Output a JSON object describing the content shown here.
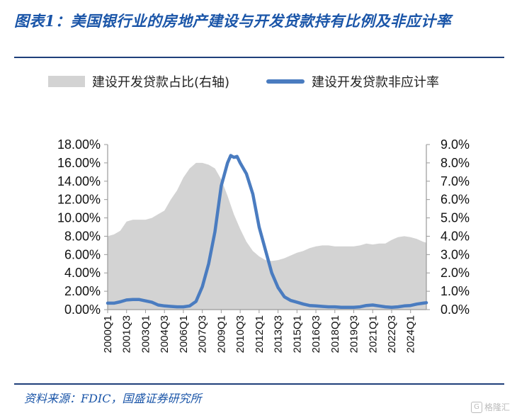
{
  "header": {
    "title": "图表1：美国银行业的房地产建设与开发贷款持有比例及非应计率"
  },
  "source": "资料来源：FDIC，国盛证券研究所",
  "watermark": "格隆汇",
  "colors": {
    "area": "#d3d3d3",
    "line": "#4a7cc0",
    "title": "#1a55a8",
    "rule": "#1f3f7a"
  },
  "chart_data": {
    "type": "area+line",
    "title": "",
    "legend": [
      "建设开发贷款占比(右轴)",
      "建设开发贷款非应计率"
    ],
    "legend_position": "top",
    "grid": false,
    "x_start": "2000Q1",
    "x_end": "2025Q2",
    "x_tick_labels": [
      "2000Q1",
      "2001Q3",
      "2003Q1",
      "2004Q3",
      "2006Q1",
      "2007Q3",
      "2009Q1",
      "2010Q3",
      "2012Q1",
      "2013Q3",
      "2015Q1",
      "2016Q3",
      "2018Q1",
      "2019Q3",
      "2021Q1",
      "2022Q3",
      "2024Q1"
    ],
    "left_axis": {
      "range": [
        0,
        18
      ],
      "ticks": [
        "0.00%",
        "2.00%",
        "4.00%",
        "6.00%",
        "8.00%",
        "10.00%",
        "12.00%",
        "14.00%",
        "16.00%",
        "18.00%"
      ]
    },
    "right_axis": {
      "range": [
        0,
        9
      ],
      "ticks": [
        "0.0%",
        "1.0%",
        "2.0%",
        "3.0%",
        "4.0%",
        "5.0%",
        "6.0%",
        "7.0%",
        "8.0%",
        "9.0%"
      ]
    },
    "series": [
      {
        "name": "建设开发贷款占比(右轴)",
        "axis": "right",
        "kind": "area",
        "points": [
          [
            "2000Q1",
            4.0
          ],
          [
            "2000Q3",
            4.1
          ],
          [
            "2001Q1",
            4.3
          ],
          [
            "2001Q3",
            4.8
          ],
          [
            "2002Q1",
            4.9
          ],
          [
            "2002Q3",
            4.9
          ],
          [
            "2003Q1",
            4.9
          ],
          [
            "2003Q3",
            5.0
          ],
          [
            "2004Q1",
            5.2
          ],
          [
            "2004Q3",
            5.4
          ],
          [
            "2005Q1",
            6.0
          ],
          [
            "2005Q3",
            6.5
          ],
          [
            "2006Q1",
            7.2
          ],
          [
            "2006Q3",
            7.7
          ],
          [
            "2007Q1",
            8.0
          ],
          [
            "2007Q3",
            8.0
          ],
          [
            "2008Q1",
            7.9
          ],
          [
            "2008Q3",
            7.7
          ],
          [
            "2009Q1",
            7.1
          ],
          [
            "2009Q3",
            6.2
          ],
          [
            "2010Q1",
            5.2
          ],
          [
            "2010Q3",
            4.4
          ],
          [
            "2011Q1",
            3.7
          ],
          [
            "2011Q3",
            3.2
          ],
          [
            "2012Q1",
            2.9
          ],
          [
            "2012Q3",
            2.7
          ],
          [
            "2013Q1",
            2.65
          ],
          [
            "2013Q3",
            2.7
          ],
          [
            "2014Q1",
            2.8
          ],
          [
            "2014Q3",
            2.95
          ],
          [
            "2015Q1",
            3.1
          ],
          [
            "2015Q3",
            3.2
          ],
          [
            "2016Q1",
            3.35
          ],
          [
            "2016Q3",
            3.45
          ],
          [
            "2017Q1",
            3.5
          ],
          [
            "2017Q3",
            3.5
          ],
          [
            "2018Q1",
            3.45
          ],
          [
            "2018Q3",
            3.45
          ],
          [
            "2019Q1",
            3.45
          ],
          [
            "2019Q3",
            3.45
          ],
          [
            "2020Q1",
            3.5
          ],
          [
            "2020Q3",
            3.6
          ],
          [
            "2021Q1",
            3.55
          ],
          [
            "2021Q3",
            3.6
          ],
          [
            "2022Q1",
            3.6
          ],
          [
            "2022Q3",
            3.8
          ],
          [
            "2023Q1",
            3.95
          ],
          [
            "2023Q3",
            4.0
          ],
          [
            "2024Q1",
            3.95
          ],
          [
            "2024Q3",
            3.85
          ],
          [
            "2025Q1",
            3.7
          ],
          [
            "2025Q2",
            3.65
          ]
        ]
      },
      {
        "name": "建设开发贷款非应计率",
        "axis": "left",
        "kind": "line",
        "points": [
          [
            "2000Q1",
            0.7
          ],
          [
            "2000Q3",
            0.7
          ],
          [
            "2001Q1",
            0.85
          ],
          [
            "2001Q3",
            1.05
          ],
          [
            "2002Q1",
            1.1
          ],
          [
            "2002Q3",
            1.1
          ],
          [
            "2003Q1",
            0.95
          ],
          [
            "2003Q3",
            0.8
          ],
          [
            "2004Q1",
            0.5
          ],
          [
            "2004Q3",
            0.4
          ],
          [
            "2005Q1",
            0.35
          ],
          [
            "2005Q3",
            0.3
          ],
          [
            "2006Q1",
            0.3
          ],
          [
            "2006Q3",
            0.4
          ],
          [
            "2007Q1",
            0.9
          ],
          [
            "2007Q3",
            2.5
          ],
          [
            "2008Q1",
            5.0
          ],
          [
            "2008Q3",
            8.5
          ],
          [
            "2009Q1",
            13.5
          ],
          [
            "2009Q3",
            16.0
          ],
          [
            "2009Q4",
            16.8
          ],
          [
            "2010Q1",
            16.6
          ],
          [
            "2010Q2",
            16.7
          ],
          [
            "2010Q3",
            16.0
          ],
          [
            "2011Q1",
            14.8
          ],
          [
            "2011Q3",
            12.6
          ],
          [
            "2012Q1",
            9.0
          ],
          [
            "2012Q3",
            6.5
          ],
          [
            "2013Q1",
            4.0
          ],
          [
            "2013Q3",
            2.4
          ],
          [
            "2014Q1",
            1.4
          ],
          [
            "2014Q3",
            1.0
          ],
          [
            "2015Q1",
            0.8
          ],
          [
            "2015Q3",
            0.6
          ],
          [
            "2016Q1",
            0.45
          ],
          [
            "2016Q3",
            0.4
          ],
          [
            "2017Q1",
            0.35
          ],
          [
            "2017Q3",
            0.3
          ],
          [
            "2018Q1",
            0.3
          ],
          [
            "2018Q3",
            0.25
          ],
          [
            "2019Q1",
            0.25
          ],
          [
            "2019Q3",
            0.25
          ],
          [
            "2020Q1",
            0.3
          ],
          [
            "2020Q3",
            0.45
          ],
          [
            "2021Q1",
            0.5
          ],
          [
            "2021Q3",
            0.4
          ],
          [
            "2022Q1",
            0.3
          ],
          [
            "2022Q3",
            0.25
          ],
          [
            "2023Q1",
            0.3
          ],
          [
            "2023Q3",
            0.4
          ],
          [
            "2024Q1",
            0.45
          ],
          [
            "2024Q3",
            0.6
          ],
          [
            "2025Q1",
            0.7
          ],
          [
            "2025Q2",
            0.75
          ]
        ]
      }
    ]
  }
}
